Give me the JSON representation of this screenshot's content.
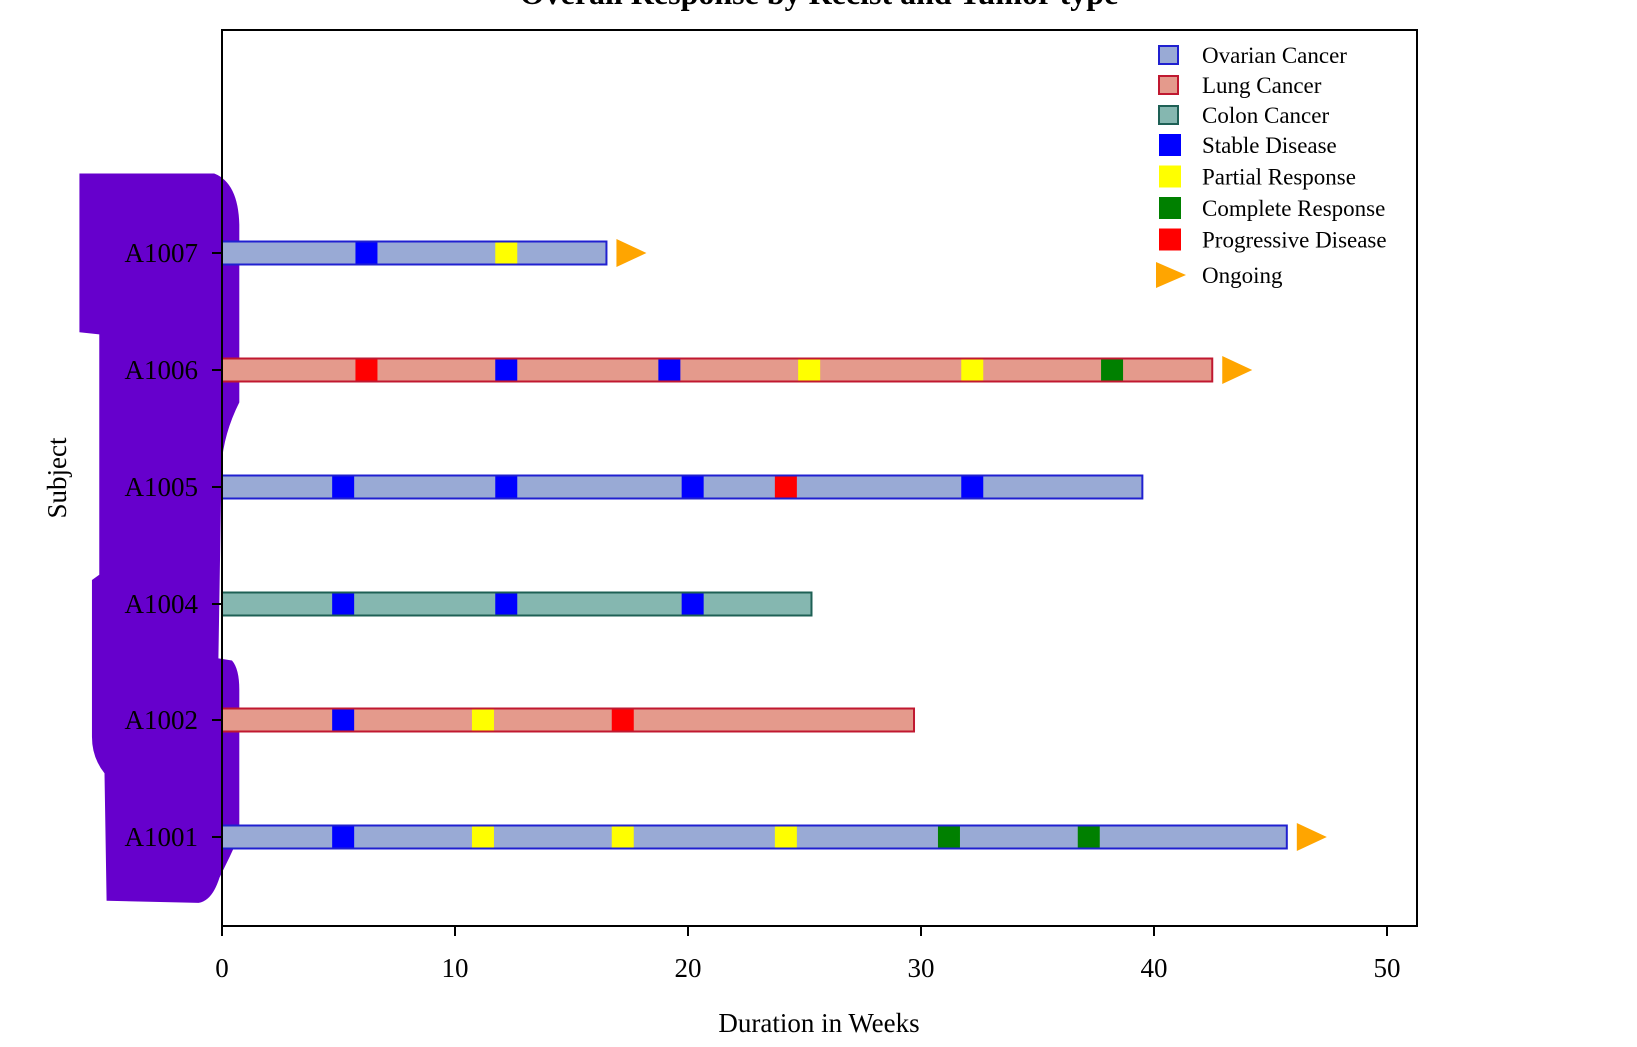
{
  "chart_data": {
    "type": "bar",
    "subtype": "swimmer",
    "title": "Overall Response by Recist and Tumor type",
    "xlabel": "Duration in Weeks",
    "ylabel": "Subject",
    "xlim": [
      0,
      50
    ],
    "xticks": [
      "0",
      "10",
      "20",
      "30",
      "40",
      "50"
    ],
    "grid": false,
    "legend_position": "top-right",
    "tumor_types": [
      {
        "name": "Ovarian Cancer",
        "fill": "#99AAD5",
        "stroke": "#2020D0"
      },
      {
        "name": "Lung Cancer",
        "fill": "#E49A8C",
        "stroke": "#C01830"
      },
      {
        "name": "Colon Cancer",
        "fill": "#85B7B0",
        "stroke": "#1E6055"
      }
    ],
    "responses": [
      {
        "name": "Stable Disease",
        "color": "#0000FF"
      },
      {
        "name": "Partial Response",
        "color": "#FFFF00"
      },
      {
        "name": "Complete Response",
        "color": "#008000"
      },
      {
        "name": "Progressive Disease",
        "color": "#FF0000"
      }
    ],
    "ongoing": {
      "name": "Ongoing",
      "color": "#FFA500"
    },
    "subjects": [
      {
        "id": "A1007",
        "tumor": "Ovarian Cancer",
        "duration": 16.5,
        "ongoing": true,
        "events": [
          {
            "week": 6.2,
            "response": "Stable Disease"
          },
          {
            "week": 12.2,
            "response": "Partial Response"
          }
        ]
      },
      {
        "id": "A1006",
        "tumor": "Lung Cancer",
        "duration": 42.5,
        "ongoing": true,
        "events": [
          {
            "week": 6.2,
            "response": "Progressive Disease"
          },
          {
            "week": 12.2,
            "response": "Stable Disease"
          },
          {
            "week": 19.2,
            "response": "Stable Disease"
          },
          {
            "week": 25.2,
            "response": "Partial Response"
          },
          {
            "week": 32.2,
            "response": "Partial Response"
          },
          {
            "week": 38.2,
            "response": "Complete Response"
          }
        ]
      },
      {
        "id": "A1005",
        "tumor": "Ovarian Cancer",
        "duration": 39.5,
        "ongoing": false,
        "events": [
          {
            "week": 5.2,
            "response": "Stable Disease"
          },
          {
            "week": 12.2,
            "response": "Stable Disease"
          },
          {
            "week": 20.2,
            "response": "Stable Disease"
          },
          {
            "week": 24.2,
            "response": "Progressive Disease"
          },
          {
            "week": 32.2,
            "response": "Stable Disease"
          }
        ]
      },
      {
        "id": "A1004",
        "tumor": "Colon Cancer",
        "duration": 25.3,
        "ongoing": false,
        "events": [
          {
            "week": 5.2,
            "response": "Stable Disease"
          },
          {
            "week": 12.2,
            "response": "Stable Disease"
          },
          {
            "week": 20.2,
            "response": "Stable Disease"
          }
        ]
      },
      {
        "id": "A1002",
        "tumor": "Lung Cancer",
        "duration": 29.7,
        "ongoing": false,
        "events": [
          {
            "week": 5.2,
            "response": "Stable Disease"
          },
          {
            "week": 11.2,
            "response": "Partial Response"
          },
          {
            "week": 17.2,
            "response": "Progressive Disease"
          }
        ]
      },
      {
        "id": "A1001",
        "tumor": "Ovarian Cancer",
        "duration": 45.7,
        "ongoing": true,
        "events": [
          {
            "week": 5.2,
            "response": "Stable Disease"
          },
          {
            "week": 11.2,
            "response": "Partial Response"
          },
          {
            "week": 17.2,
            "response": "Partial Response"
          },
          {
            "week": 24.2,
            "response": "Partial Response"
          },
          {
            "week": 31.2,
            "response": "Complete Response"
          },
          {
            "week": 37.2,
            "response": "Complete Response"
          }
        ]
      }
    ]
  },
  "redaction_color": "#6600CC"
}
